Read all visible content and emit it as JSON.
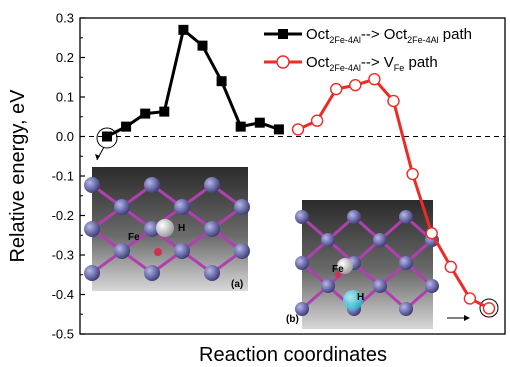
{
  "chart_data": {
    "type": "line",
    "xlabel": "Reaction coordinates",
    "ylabel": "Relative energy, eV",
    "ylim": [
      -0.5,
      0.3
    ],
    "yticks": [
      "0.3",
      "0.2",
      "0.1",
      "0.0",
      "-0.1",
      "-0.2",
      "-0.3",
      "-0.4",
      "-0.5"
    ],
    "zero_line": "dashed",
    "legend_position": "top-right",
    "series": [
      {
        "legend": {
          "pre": "Oct",
          "pre_sub": "2Fe-4Al",
          "mid": "--> Oct",
          "mid_sub": "2Fe-4Al",
          "post": " path"
        },
        "color": "#000000",
        "marker": "filled-square",
        "x": [
          1,
          2,
          3,
          4,
          5,
          6,
          7,
          8,
          9,
          10
        ],
        "y": [
          0.0,
          0.025,
          0.058,
          0.063,
          0.27,
          0.23,
          0.14,
          0.025,
          0.035,
          0.018
        ]
      },
      {
        "legend": {
          "pre": "Oct",
          "pre_sub": "2Fe-4Al",
          "mid": "--> V",
          "mid_sub": "Fe",
          "post": " path"
        },
        "color": "#ee2a24",
        "marker": "open-circle",
        "x": [
          11,
          12,
          13,
          14,
          15,
          16,
          17,
          18,
          19,
          20,
          21
        ],
        "y": [
          0.018,
          0.04,
          0.12,
          0.13,
          0.145,
          0.09,
          -0.095,
          -0.245,
          -0.33,
          -0.41,
          -0.435
        ]
      }
    ],
    "insets": [
      {
        "tag": "(a)",
        "label_h": "H",
        "label_fe": "Fe"
      },
      {
        "tag": "(b)",
        "label_h": "H",
        "label_fe": "Fe"
      }
    ]
  },
  "colors": {
    "black_series": "#000000",
    "red_series": "#ee2a24",
    "atom_blue": "#6a6aa8",
    "bond_magenta": "#b040b0"
  }
}
